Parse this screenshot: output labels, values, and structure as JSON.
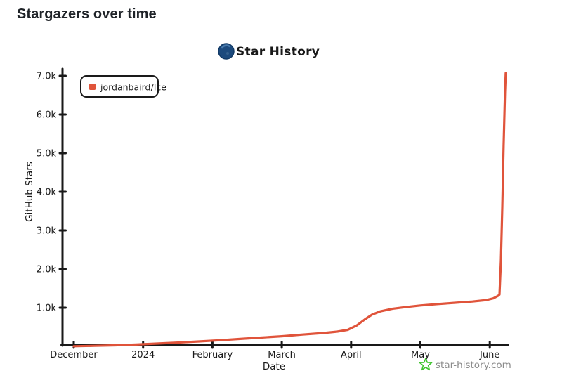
{
  "page": {
    "header": {
      "title": "Stargazers over time"
    }
  },
  "chart": {
    "title": "Star History",
    "watermark": "star-history.com",
    "colors": {
      "series_red": "#e0543b",
      "axis_black": "#191919",
      "logo_navy": "#1c4a7d",
      "logo_highlight": "#4779ab",
      "watermark_green": "#3fc52e",
      "watermark_gray": "#8b8b8b",
      "divider_gray": "#e7e9eb"
    }
  },
  "chart_data": {
    "type": "line",
    "title": "Star History",
    "xlabel": "Date",
    "ylabel": "GitHub Stars",
    "x_unit": "months since 2023-12-01",
    "x_tick_labels": [
      "December",
      "2024",
      "February",
      "March",
      "April",
      "May",
      "June"
    ],
    "x_tick_positions": [
      0,
      1,
      2,
      3,
      4,
      5,
      6
    ],
    "x_range": [
      0,
      6.27
    ],
    "y_tick_labels": [
      "1.0k",
      "2.0k",
      "3.0k",
      "4.0k",
      "5.0k",
      "6.0k",
      "7.0k"
    ],
    "y_tick_values": [
      1000,
      2000,
      3000,
      4000,
      5000,
      6000,
      7000
    ],
    "y_range": [
      0,
      7100
    ],
    "grid": false,
    "legend_position": "top-left",
    "series": [
      {
        "name": "jordanbaird/Ice",
        "color": "#e0543b",
        "points": [
          [
            0.0,
            4
          ],
          [
            0.3,
            14
          ],
          [
            0.6,
            28
          ],
          [
            0.9,
            48
          ],
          [
            1.2,
            72
          ],
          [
            1.5,
            98
          ],
          [
            1.8,
            128
          ],
          [
            2.1,
            158
          ],
          [
            2.4,
            192
          ],
          [
            2.7,
            228
          ],
          [
            3.0,
            262
          ],
          [
            3.3,
            305
          ],
          [
            3.6,
            345
          ],
          [
            3.8,
            382
          ],
          [
            3.95,
            428
          ],
          [
            4.08,
            540
          ],
          [
            4.2,
            700
          ],
          [
            4.3,
            820
          ],
          [
            4.42,
            905
          ],
          [
            4.6,
            975
          ],
          [
            4.8,
            1020
          ],
          [
            5.0,
            1058
          ],
          [
            5.25,
            1095
          ],
          [
            5.5,
            1128
          ],
          [
            5.75,
            1160
          ],
          [
            5.95,
            1198
          ],
          [
            6.05,
            1242
          ],
          [
            6.12,
            1308
          ],
          [
            6.14,
            1340
          ],
          [
            6.16,
            2200
          ],
          [
            6.18,
            3600
          ],
          [
            6.2,
            5200
          ],
          [
            6.22,
            6600
          ],
          [
            6.23,
            7070
          ]
        ]
      }
    ]
  }
}
